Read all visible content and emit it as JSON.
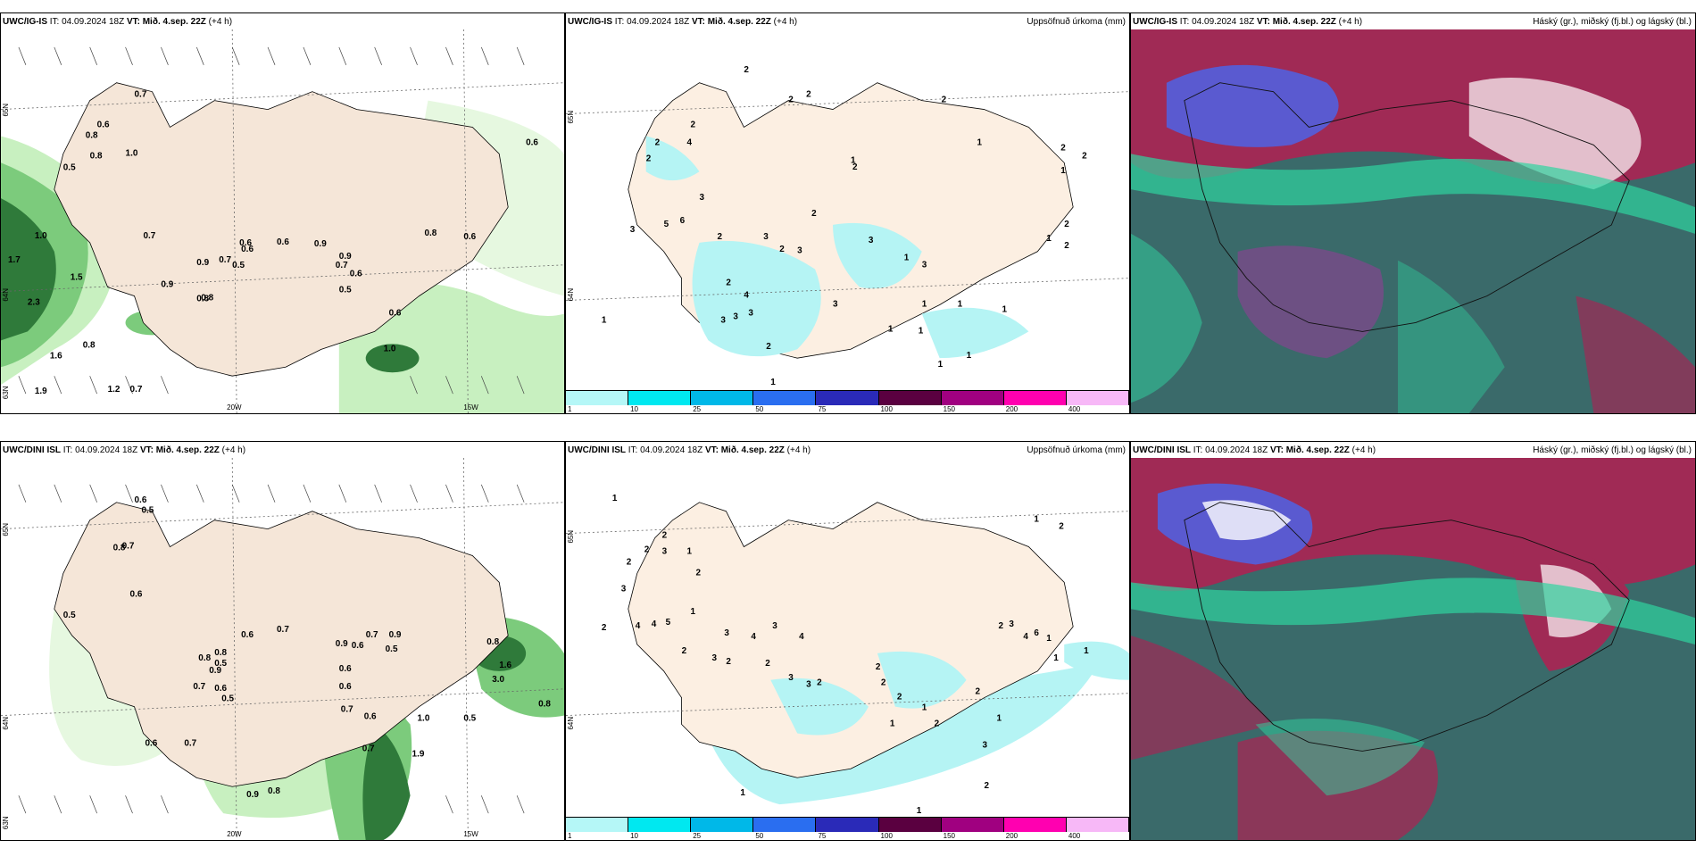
{
  "rows": [
    {
      "model": "UWC/IG-IS",
      "panels": [
        {
          "type": "wind-precip",
          "header_it": " IT: 04.09.2024 18Z",
          "header_vt": " VT: Mið. 4.sep. 22Z",
          "header_lead": " (+4 h)",
          "right_title": "",
          "lat_labels": [
            "65N",
            "64N",
            "63N"
          ],
          "lon_labels": [
            "20W",
            "15W"
          ],
          "values": [
            "0.7",
            "0.6",
            "0.8",
            "0.5",
            "1.0",
            "0.8",
            "1.0",
            "1.7",
            "2.3",
            "1.5",
            "1.6",
            "1.9",
            "1.2",
            "0.7",
            "0.8",
            "0.9",
            "0.8",
            "0.7",
            "0.6",
            "0.5",
            "0.9",
            "0.7",
            "0.6",
            "0.8",
            "0.6",
            "0.9",
            "0.5",
            "0.6",
            "1.0",
            "0.6",
            "0.8",
            "0.6",
            "0.9",
            "0.7",
            "0.6"
          ]
        },
        {
          "type": "accum-precip",
          "header_it": " IT: 04.09.2024 18Z",
          "header_vt": " VT: Mið. 4.sep. 22Z",
          "header_lead": " (+4 h)",
          "right_title": "Uppsöfnuð úrkoma (mm)",
          "lat_labels": [
            "65N",
            "64N"
          ],
          "values": [
            "2",
            "2",
            "2",
            "2",
            "2",
            "3",
            "4",
            "2",
            "5",
            "6",
            "3",
            "2",
            "4",
            "2",
            "3",
            "2",
            "1",
            "1",
            "2",
            "2",
            "1",
            "2",
            "2",
            "3",
            "3",
            "1",
            "1",
            "1",
            "1",
            "1",
            "1",
            "1",
            "1",
            "1",
            "2",
            "3",
            "2",
            "1",
            "3",
            "3",
            "3",
            "3",
            "2",
            "1",
            "2"
          ]
        },
        {
          "type": "cloud",
          "header_it": " IT: 04.09.2024 18Z",
          "header_vt": " VT: Mið. 4.sep. 22Z",
          "header_lead": " (+4 h)",
          "right_title": "Háský (gr.), miðský (fj.bl.) og lágský (bl.)"
        }
      ]
    },
    {
      "model": "UWC/DINI ISL",
      "panels": [
        {
          "type": "wind-precip",
          "header_it": " IT: 04.09.2024 18Z",
          "header_vt": " VT: Mið. 4.sep. 22Z",
          "header_lead": " (+4 h)",
          "right_title": "",
          "lat_labels": [
            "65N",
            "64N",
            "63N"
          ],
          "lon_labels": [
            "20W",
            "15W"
          ],
          "values": [
            "0.6",
            "0.5",
            "0.8",
            "0.7",
            "0.6",
            "0.5",
            "0.6",
            "0.7",
            "0.8",
            "0.9",
            "0.8",
            "0.5",
            "0.7",
            "0.6",
            "0.5",
            "0.6",
            "0.9",
            "0.7",
            "0.6",
            "0.9",
            "0.5",
            "0.8",
            "1.6",
            "3.0",
            "0.8",
            "1.0",
            "0.5",
            "0.7",
            "1.9",
            "0.9",
            "0.8",
            "0.6",
            "0.7",
            "0.6",
            "0.6",
            "0.7"
          ]
        },
        {
          "type": "accum-precip",
          "header_it": " IT: 04.09.2024 18Z",
          "header_vt": " VT: Mið. 4.sep. 22Z",
          "header_lead": " (+4 h)",
          "right_title": "Uppsöfnuð úrkoma (mm)",
          "lat_labels": [
            "65N",
            "64N"
          ],
          "values": [
            "1",
            "2",
            "2",
            "3",
            "2",
            "3",
            "2",
            "4",
            "4",
            "5",
            "1",
            "1",
            "2",
            "3",
            "4",
            "2",
            "3",
            "2",
            "3",
            "4",
            "2",
            "3",
            "3",
            "2",
            "2",
            "2",
            "2",
            "1",
            "1",
            "2",
            "2",
            "3",
            "4",
            "6",
            "1",
            "1",
            "1",
            "2",
            "1",
            "3",
            "2",
            "1",
            "1",
            "1",
            "2"
          ]
        },
        {
          "type": "cloud",
          "header_it": " IT: 04.09.2024 18Z",
          "header_vt": " VT: Mið. 4.sep. 22Z",
          "header_lead": " (+4 h)",
          "right_title": "Háský (gr.), miðský (fj.bl.) og lágský (bl.)"
        }
      ]
    }
  ],
  "colorbar": {
    "labels": [
      "1",
      "10",
      "25",
      "50",
      "75",
      "100",
      "150",
      "200",
      "400"
    ],
    "colors": [
      "#b5f7f7",
      "#00e8f0",
      "#00b8e8",
      "#2a6ef0",
      "#2a2ab8",
      "#5a0040",
      "#a00080",
      "#ff00b0",
      "#f7b8f7"
    ]
  },
  "colors": {
    "land": "#f5e6d8",
    "precip_light": "#c8f0c0",
    "precip_mid": "#7ccb7c",
    "precip_dark": "#2f7a3a",
    "accum": "#b5f4f4",
    "cloud_bg": "#3a6a6a",
    "cloud_low": "#2fd4a0",
    "cloud_mid": "#5a5ad0",
    "cloud_high": "#a02a55"
  }
}
